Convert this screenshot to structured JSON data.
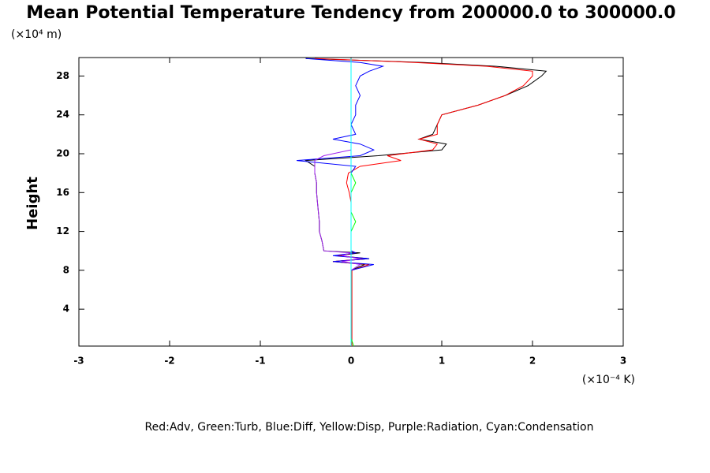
{
  "chart_data": {
    "type": "line",
    "title": "Mean Potential Temperature Tendency from 200000.0 to 300000.0",
    "y_unit": "(×10⁴ m)",
    "y_label": "Height",
    "x_unit": "(×10⁻⁴ K)",
    "note": "Red:Adv, Green:Turb, Blue:Diff, Yellow:Disp, Purple:Radiation, Cyan:Condensation",
    "xlim": [
      -3,
      3
    ],
    "xticks": [
      -3,
      -2,
      -1,
      0,
      1,
      2,
      3
    ],
    "ylim": [
      0.2,
      29.9
    ],
    "yticks": [
      4,
      8,
      12,
      16,
      20,
      24,
      28
    ],
    "y": [
      0.2,
      1,
      2,
      3,
      4,
      5,
      6,
      7,
      8,
      8.6,
      8.9,
      9.2,
      9.5,
      9.8,
      10,
      11,
      12,
      13,
      14,
      15,
      16,
      17,
      18,
      18.7,
      19.3,
      19.8,
      20.4,
      21,
      21.5,
      22,
      23,
      24,
      25,
      26,
      27,
      28,
      28.5,
      29,
      29.4,
      29.8
    ],
    "series": [
      {
        "color": "#000000",
        "values": [
          0,
          0,
          0,
          0,
          0,
          0,
          0,
          0,
          0,
          0.15,
          -0.2,
          0.2,
          -0.15,
          0.1,
          -0.3,
          -0.32,
          -0.35,
          -0.35,
          -0.36,
          -0.37,
          -0.38,
          -0.38,
          -0.4,
          -0.4,
          -0.5,
          0.3,
          1.0,
          1.05,
          0.75,
          0.9,
          0.95,
          1.0,
          1.4,
          1.7,
          1.95,
          2.1,
          2.15,
          1.6,
          0.8,
          -0.5
        ]
      },
      {
        "color": "#ff0000",
        "values": [
          0.01,
          0.01,
          0.01,
          0.01,
          0.01,
          0.01,
          0.01,
          0.01,
          0.01,
          0.2,
          -0.2,
          0.15,
          -0.15,
          0.05,
          0,
          0,
          0,
          0,
          0,
          0,
          -0.02,
          -0.05,
          -0.03,
          0.1,
          0.55,
          0.4,
          0.9,
          0.95,
          0.75,
          0.95,
          0.95,
          1.0,
          1.4,
          1.7,
          1.9,
          2.0,
          2.0,
          1.5,
          0.7,
          -0.4
        ]
      },
      {
        "color": "#0000ff",
        "values": [
          0,
          0,
          0,
          0,
          0,
          0,
          0,
          0,
          0,
          0.25,
          -0.2,
          0.2,
          -0.2,
          0.05,
          0,
          0,
          0,
          0,
          0,
          0,
          0,
          0,
          0,
          0.05,
          -0.6,
          0.1,
          0.25,
          0.1,
          -0.2,
          0.05,
          0,
          0.05,
          0.05,
          0.1,
          0.05,
          0.1,
          0.2,
          0.35,
          0.1,
          -0.5
        ]
      },
      {
        "color": "#a020f0",
        "values": [
          0,
          0,
          0,
          0,
          0,
          0,
          0,
          0,
          0,
          0.1,
          -0.1,
          0.1,
          -0.1,
          0,
          -0.3,
          -0.32,
          -0.35,
          -0.35,
          -0.36,
          -0.37,
          -0.38,
          -0.38,
          -0.4,
          -0.4,
          -0.4,
          -0.3,
          0,
          0,
          0,
          0,
          0,
          0,
          0,
          0,
          0,
          0,
          0,
          0,
          0,
          0
        ]
      },
      {
        "color": "#00ff00",
        "values": [
          0.03,
          0,
          0,
          0,
          0,
          0,
          0,
          0,
          0,
          0,
          0,
          0,
          0,
          0,
          0,
          0,
          0,
          0.05,
          0,
          0,
          0,
          0.05,
          0,
          0,
          0,
          0,
          0,
          0,
          0,
          0,
          0,
          0,
          0,
          0,
          0,
          0,
          0,
          0,
          0,
          0
        ]
      },
      {
        "color": "#00ffff",
        "values": [
          0,
          0,
          0,
          0,
          0,
          0,
          0,
          0,
          0,
          0,
          0,
          0,
          0,
          0,
          0,
          0,
          0,
          0,
          0,
          0,
          0,
          0,
          0,
          0,
          0,
          0,
          0,
          0,
          0,
          0,
          0,
          0,
          0,
          0,
          0,
          0,
          0,
          0,
          0,
          0
        ]
      }
    ]
  }
}
